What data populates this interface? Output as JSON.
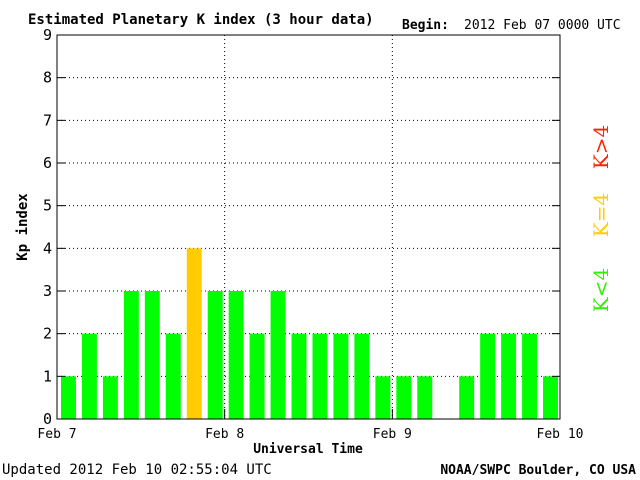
{
  "chart_data": {
    "type": "bar",
    "title": "Estimated Planetary K index (3 hour data)",
    "begin_label": "Begin:",
    "begin_value": "2012 Feb 07 0000 UTC",
    "xlabel": "Universal Time",
    "ylabel": "Kp index",
    "ylim": [
      0,
      9
    ],
    "y_ticks": [
      "0",
      "1",
      "2",
      "3",
      "4",
      "5",
      "6",
      "7",
      "8",
      "9"
    ],
    "x_ticks": [
      "Feb 7",
      "Feb 8",
      "Feb 9",
      "Feb 10"
    ],
    "grid": true,
    "values": [
      1,
      2,
      1,
      3,
      3,
      2,
      4,
      3,
      3,
      2,
      3,
      2,
      2,
      2,
      2,
      1,
      1,
      1,
      0,
      1,
      2,
      2,
      2,
      1
    ],
    "legend": [
      {
        "label": "K<4",
        "color": "#33ee00"
      },
      {
        "label": "K=4",
        "color": "#ffcc00"
      },
      {
        "label": "K>4",
        "color": "#ff2200"
      }
    ],
    "colors": {
      "low": "#00ff00",
      "mid": "#ffcc00",
      "high": "#ff0000"
    }
  },
  "footer": {
    "updated": "Updated 2012 Feb 10 02:55:04 UTC",
    "source": "NOAA/SWPC Boulder, CO USA"
  }
}
